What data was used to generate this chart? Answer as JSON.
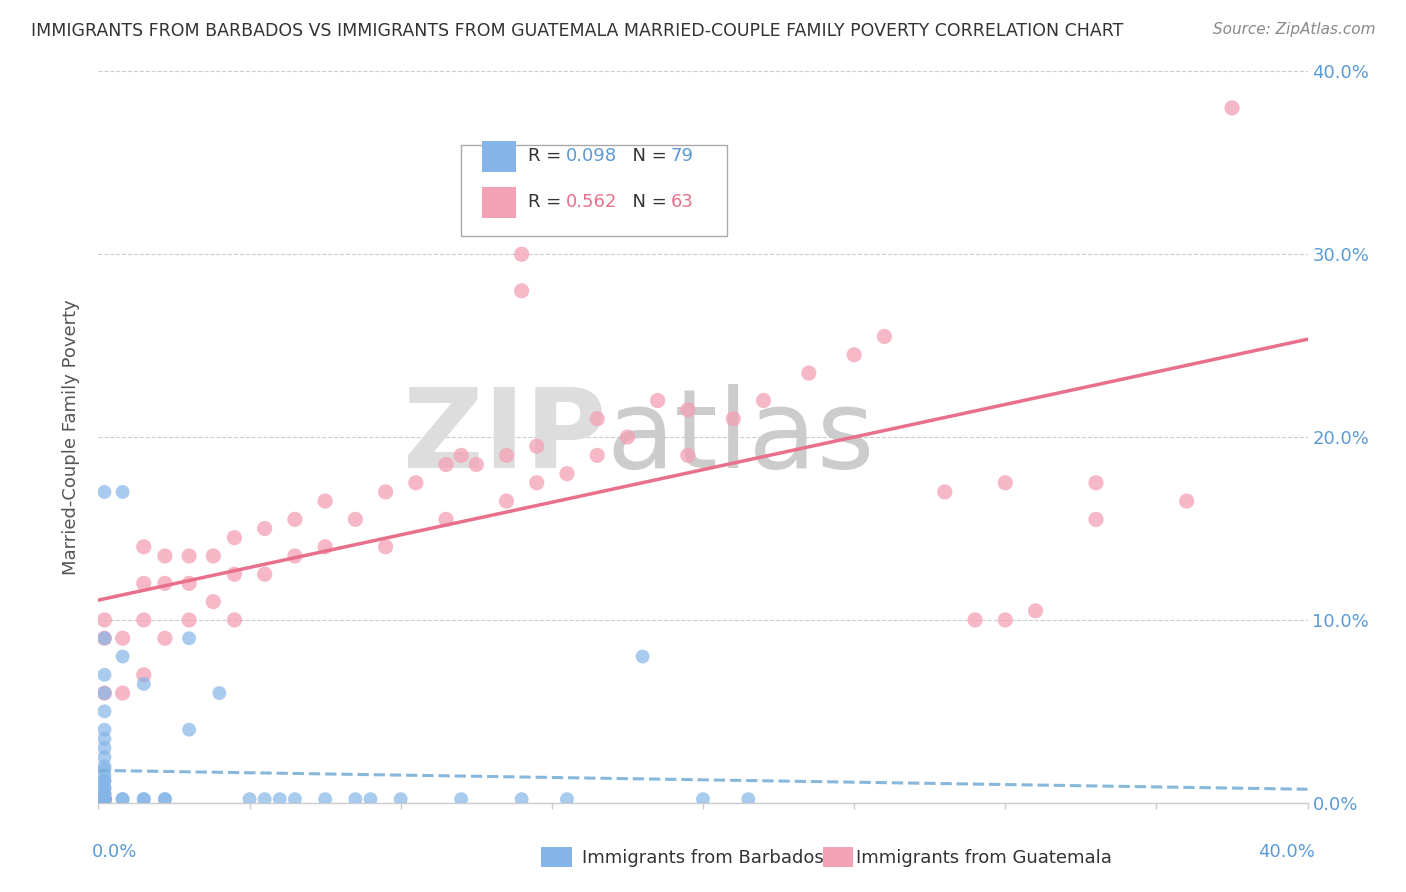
{
  "title": "IMMIGRANTS FROM BARBADOS VS IMMIGRANTS FROM GUATEMALA MARRIED-COUPLE FAMILY POVERTY CORRELATION CHART",
  "source": "Source: ZipAtlas.com",
  "ylabel": "Married-Couple Family Poverty",
  "xlim": [
    0.0,
    0.4
  ],
  "ylim": [
    0.0,
    0.4
  ],
  "legend1_R": "0.098",
  "legend1_N": "79",
  "legend2_R": "0.562",
  "legend2_N": "63",
  "barbados_color": "#85b5e8",
  "guatemala_color": "#f4a0b5",
  "line_barbados_color": "#7ab0d8",
  "line_guatemala_color": "#e8708a",
  "barbados_x": [
    0.002,
    0.002,
    0.002,
    0.002,
    0.002,
    0.002,
    0.002,
    0.002,
    0.002,
    0.002,
    0.002,
    0.002,
    0.002,
    0.002,
    0.002,
    0.002,
    0.002,
    0.002,
    0.002,
    0.002,
    0.002,
    0.002,
    0.002,
    0.002,
    0.002,
    0.002,
    0.002,
    0.002,
    0.002,
    0.002,
    0.002,
    0.002,
    0.002,
    0.002,
    0.002,
    0.008,
    0.008,
    0.008,
    0.008,
    0.015,
    0.015,
    0.015,
    0.022,
    0.022,
    0.03,
    0.03,
    0.04,
    0.05,
    0.06,
    0.075,
    0.1,
    0.12,
    0.14,
    0.155,
    0.18,
    0.2,
    0.215,
    0.055,
    0.065,
    0.085,
    0.09,
    0.002,
    0.002,
    0.002,
    0.002,
    0.002,
    0.002,
    0.002,
    0.002,
    0.002,
    0.002,
    0.002,
    0.002,
    0.002,
    0.002,
    0.002,
    0.002,
    0.002,
    0.002,
    0.002
  ],
  "barbados_y": [
    0.002,
    0.002,
    0.002,
    0.002,
    0.002,
    0.002,
    0.002,
    0.002,
    0.002,
    0.002,
    0.002,
    0.002,
    0.002,
    0.002,
    0.002,
    0.002,
    0.002,
    0.005,
    0.005,
    0.008,
    0.008,
    0.012,
    0.012,
    0.015,
    0.018,
    0.02,
    0.025,
    0.03,
    0.035,
    0.04,
    0.05,
    0.06,
    0.07,
    0.09,
    0.17,
    0.002,
    0.002,
    0.08,
    0.17,
    0.002,
    0.002,
    0.065,
    0.002,
    0.002,
    0.04,
    0.09,
    0.06,
    0.002,
    0.002,
    0.002,
    0.002,
    0.002,
    0.002,
    0.002,
    0.08,
    0.002,
    0.002,
    0.002,
    0.002,
    0.002,
    0.002,
    0.002,
    0.002,
    0.002,
    0.002,
    0.002,
    0.002,
    0.002,
    0.002,
    0.002,
    0.002,
    0.002,
    0.002,
    0.002,
    0.002,
    0.002,
    0.002,
    0.002,
    0.002,
    0.002
  ],
  "guatemala_x": [
    0.002,
    0.002,
    0.002,
    0.002,
    0.002,
    0.008,
    0.008,
    0.015,
    0.015,
    0.015,
    0.015,
    0.022,
    0.022,
    0.022,
    0.03,
    0.03,
    0.03,
    0.038,
    0.038,
    0.045,
    0.045,
    0.045,
    0.055,
    0.055,
    0.065,
    0.065,
    0.075,
    0.075,
    0.085,
    0.095,
    0.095,
    0.105,
    0.115,
    0.115,
    0.125,
    0.135,
    0.135,
    0.145,
    0.145,
    0.155,
    0.165,
    0.165,
    0.175,
    0.185,
    0.195,
    0.195,
    0.21,
    0.22,
    0.235,
    0.25,
    0.26,
    0.28,
    0.29,
    0.31,
    0.33,
    0.33,
    0.36,
    0.375,
    0.12,
    0.14,
    0.14,
    0.3,
    0.3
  ],
  "guatemala_y": [
    0.002,
    0.002,
    0.06,
    0.09,
    0.1,
    0.06,
    0.09,
    0.07,
    0.1,
    0.12,
    0.14,
    0.09,
    0.12,
    0.135,
    0.1,
    0.12,
    0.135,
    0.11,
    0.135,
    0.1,
    0.125,
    0.145,
    0.125,
    0.15,
    0.135,
    0.155,
    0.14,
    0.165,
    0.155,
    0.14,
    0.17,
    0.175,
    0.155,
    0.185,
    0.185,
    0.165,
    0.19,
    0.175,
    0.195,
    0.18,
    0.19,
    0.21,
    0.2,
    0.22,
    0.19,
    0.215,
    0.21,
    0.22,
    0.235,
    0.245,
    0.255,
    0.17,
    0.1,
    0.105,
    0.175,
    0.155,
    0.165,
    0.38,
    0.19,
    0.28,
    0.3,
    0.1,
    0.175
  ]
}
